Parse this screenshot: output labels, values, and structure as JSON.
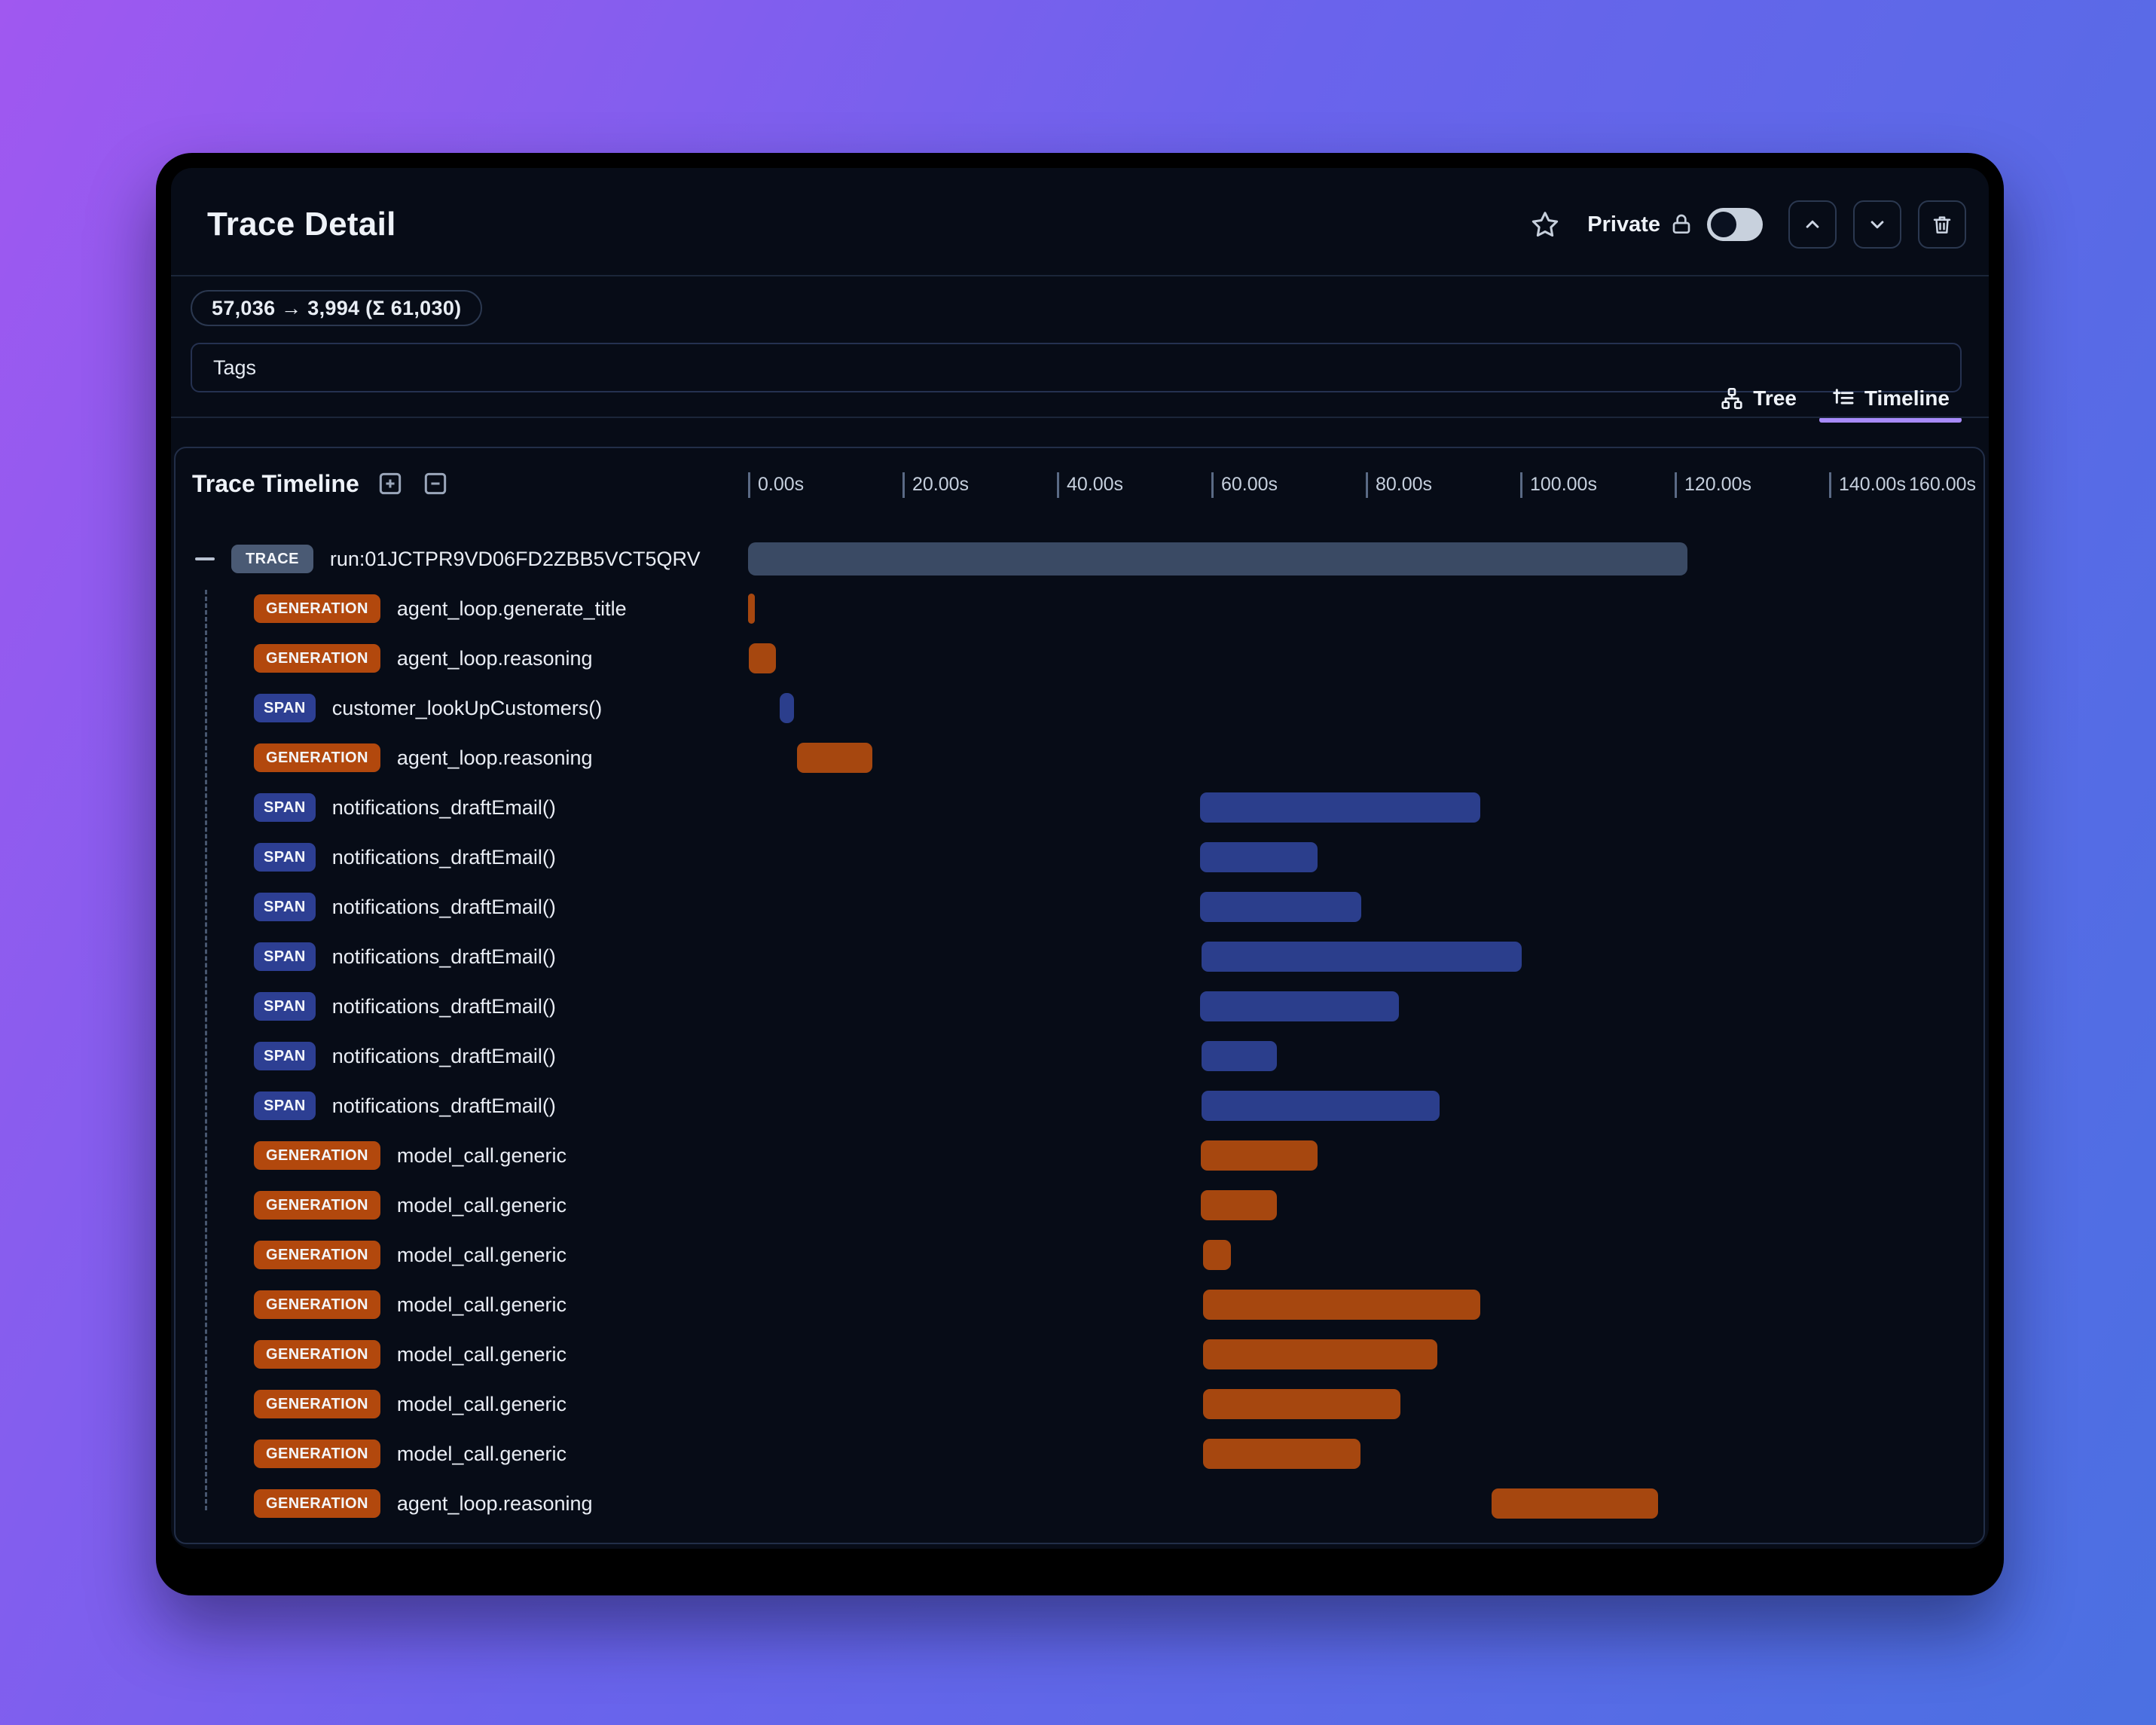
{
  "header": {
    "title": "Trace Detail",
    "privacy_label": "Private",
    "token_usage": "57,036 → 3,994 (Σ 61,030)",
    "tags_label": "Tags"
  },
  "tabs": {
    "tree_label": "Tree",
    "timeline_label": "Timeline",
    "active": "Timeline"
  },
  "panel": {
    "title": "Trace Timeline",
    "axis": {
      "max_seconds": 160,
      "ticks": [
        {
          "t": 0,
          "label": "0.00s"
        },
        {
          "t": 20,
          "label": "20.00s"
        },
        {
          "t": 40,
          "label": "40.00s"
        },
        {
          "t": 60,
          "label": "60.00s"
        },
        {
          "t": 80,
          "label": "80.00s"
        },
        {
          "t": 100,
          "label": "100.00s"
        },
        {
          "t": 120,
          "label": "120.00s"
        },
        {
          "t": 140,
          "label": "140.00s"
        },
        {
          "t": 160,
          "label": "160.00s",
          "end": true
        }
      ]
    }
  },
  "rows": [
    {
      "type": "TRACE",
      "label": "run:01JCTPR9VD06FD2ZBB5VCT5QRV",
      "start": 0,
      "end": 121.7,
      "root": true
    },
    {
      "type": "GENERATION",
      "label": "agent_loop.generate_title",
      "start": 0,
      "end": 0.9
    },
    {
      "type": "GENERATION",
      "label": "agent_loop.reasoning",
      "start": 0.1,
      "end": 3.6
    },
    {
      "type": "SPAN",
      "label": "customer_lookUpCustomers()",
      "start": 4.1,
      "end": 6.0
    },
    {
      "type": "GENERATION",
      "label": "agent_loop.reasoning",
      "start": 6.3,
      "end": 16.1
    },
    {
      "type": "SPAN",
      "label": "notifications_draftEmail()",
      "start": 58.5,
      "end": 94.8
    },
    {
      "type": "SPAN",
      "label": "notifications_draftEmail()",
      "start": 58.5,
      "end": 73.8
    },
    {
      "type": "SPAN",
      "label": "notifications_draftEmail()",
      "start": 58.5,
      "end": 79.4
    },
    {
      "type": "SPAN",
      "label": "notifications_draftEmail()",
      "start": 58.7,
      "end": 100.2
    },
    {
      "type": "SPAN",
      "label": "notifications_draftEmail()",
      "start": 58.5,
      "end": 84.3
    },
    {
      "type": "SPAN",
      "label": "notifications_draftEmail()",
      "start": 58.7,
      "end": 68.5
    },
    {
      "type": "SPAN",
      "label": "notifications_draftEmail()",
      "start": 58.7,
      "end": 89.6
    },
    {
      "type": "GENERATION",
      "label": "model_call.generic",
      "start": 58.6,
      "end": 73.8
    },
    {
      "type": "GENERATION",
      "label": "model_call.generic",
      "start": 58.6,
      "end": 68.5
    },
    {
      "type": "GENERATION",
      "label": "model_call.generic",
      "start": 58.9,
      "end": 62.5
    },
    {
      "type": "GENERATION",
      "label": "model_call.generic",
      "start": 58.9,
      "end": 94.8
    },
    {
      "type": "GENERATION",
      "label": "model_call.generic",
      "start": 58.9,
      "end": 89.3
    },
    {
      "type": "GENERATION",
      "label": "model_call.generic",
      "start": 58.9,
      "end": 84.5
    },
    {
      "type": "GENERATION",
      "label": "model_call.generic",
      "start": 58.9,
      "end": 79.3
    },
    {
      "type": "GENERATION",
      "label": "agent_loop.reasoning",
      "start": 96.3,
      "end": 117.9
    }
  ],
  "colors": {
    "background_gradient_start": "#a058f0",
    "background_gradient_mid": "#6a63ec",
    "background_gradient_end": "#4b70e2",
    "panel_background": "#070c17",
    "trace_badge": "#4a5a74",
    "trace_bar": "#3a4a64",
    "span_badge": "#2d3f93",
    "span_bar": "#2b3e8c",
    "generation_badge": "#b2480d",
    "generation_bar": "#a6470f",
    "active_tab_underline": "#a78bfa"
  }
}
